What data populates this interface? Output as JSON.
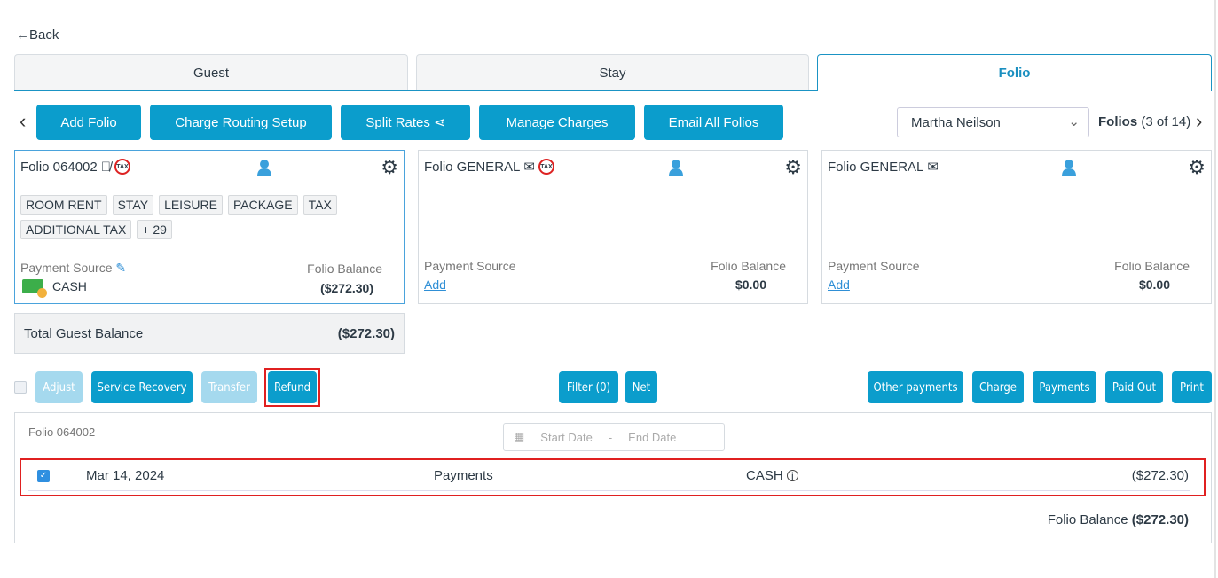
{
  "nav": {
    "back": "Back"
  },
  "tabs": [
    {
      "label": "Guest"
    },
    {
      "label": "Stay"
    },
    {
      "label": "Folio",
      "active": true
    }
  ],
  "toolbar": {
    "buttons": [
      "Add Folio",
      "Charge Routing Setup",
      "Split Rates",
      "Manage Charges",
      "Email All Folios"
    ],
    "guest_select": "Martha Neilson",
    "folios_label": "Folios",
    "folios_count": "(3 of 14)"
  },
  "folios": [
    {
      "title": "Folio 064002",
      "tags": [
        "ROOM RENT",
        "STAY",
        "LEISURE",
        "PACKAGE",
        "TAX",
        "ADDITIONAL TAX",
        "+ 29"
      ],
      "payment_source_label": "Payment Source",
      "payment_source": "CASH",
      "balance_label": "Folio Balance",
      "balance": "($272.30)",
      "icons": [
        "eye-slash-icon",
        "no-tax-icon"
      ]
    },
    {
      "title": "Folio GENERAL",
      "payment_source_label": "Payment Source",
      "add_label": "Add",
      "balance_label": "Folio Balance",
      "balance": "$0.00",
      "icons": [
        "email-icon",
        "no-tax-icon"
      ]
    },
    {
      "title": "Folio GENERAL",
      "payment_source_label": "Payment Source",
      "add_label": "Add",
      "balance_label": "Folio Balance",
      "balance": "$0.00",
      "icons": [
        "email-icon"
      ]
    }
  ],
  "total": {
    "label": "Total Guest Balance",
    "value": "($272.30)"
  },
  "actions": {
    "left": [
      "Adjust",
      "Service Recovery",
      "Transfer",
      "Refund"
    ],
    "center": [
      "Filter (0)",
      "Net"
    ],
    "right": [
      "Other payments",
      "Charge",
      "Payments",
      "Paid Out",
      "Print"
    ]
  },
  "ledger": {
    "folio": "Folio 064002",
    "start_placeholder": "Start Date",
    "end_placeholder": "End Date",
    "separator": "-",
    "rows": [
      {
        "date": "Mar 14, 2024",
        "type": "Payments",
        "method": "CASH",
        "amount": "($272.30)",
        "checked": true
      }
    ],
    "balance_label": "Folio Balance",
    "balance": "($272.30)"
  },
  "colors": {
    "primary": "#0b9dcc",
    "disabled": "#a5d9ee",
    "highlight": "#e02020"
  }
}
